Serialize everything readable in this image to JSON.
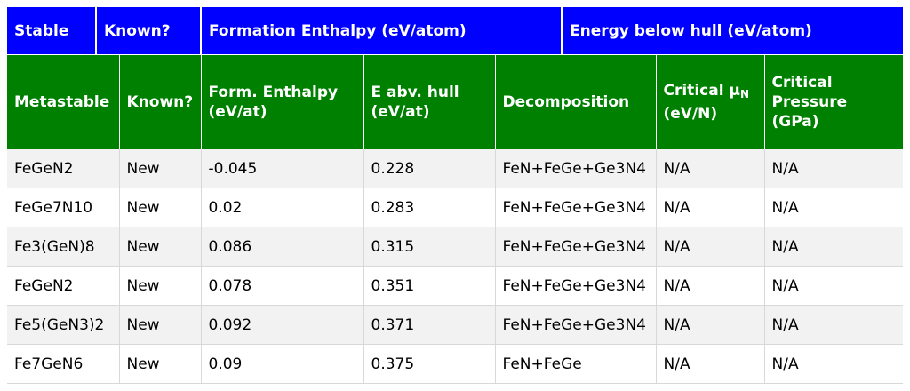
{
  "stable_header": {
    "stable": "Stable",
    "known": "Known?",
    "formation_enthalpy": "Formation Enthalpy (eV/atom)",
    "energy_below_hull": "Energy below hull (eV/atom)"
  },
  "meta_header": {
    "metastable": "Metastable",
    "known": "Known?",
    "form_enthalpy": "Form. Enthalpy (eV/at)",
    "e_abv_hull": "E abv. hull (eV/at)",
    "decomposition": "Decomposition",
    "critical_mu_prefix": "Critical μ",
    "critical_mu_sub": "N",
    "critical_mu_unit": "(eV/N)",
    "critical_pressure": "Critical Pressure (GPa)"
  },
  "colors": {
    "stable_header_bg": "#0000ff",
    "meta_header_bg": "#008000",
    "known_text": "#ff00ff",
    "positive_enthalpy_text": "#ff0000"
  },
  "rows": [
    {
      "compound": "FeGeN2",
      "known": "New",
      "enthalpy": "-0.045",
      "enthalpy_sign": "neg",
      "hull": "0.228",
      "decomposition": "FeN+FeGe+Ge3N4",
      "critical_mu": "N/A",
      "critical_pressure": "N/A"
    },
    {
      "compound": "FeGe7N10",
      "known": "New",
      "enthalpy": "0.02",
      "enthalpy_sign": "pos",
      "hull": "0.283",
      "decomposition": "FeN+FeGe+Ge3N4",
      "critical_mu": "N/A",
      "critical_pressure": "N/A"
    },
    {
      "compound": "Fe3(GeN)8",
      "known": "New",
      "enthalpy": "0.086",
      "enthalpy_sign": "pos",
      "hull": "0.315",
      "decomposition": "FeN+FeGe+Ge3N4",
      "critical_mu": "N/A",
      "critical_pressure": "N/A"
    },
    {
      "compound": "FeGeN2",
      "known": "New",
      "enthalpy": "0.078",
      "enthalpy_sign": "pos",
      "hull": "0.351",
      "decomposition": "FeN+FeGe+Ge3N4",
      "critical_mu": "N/A",
      "critical_pressure": "N/A"
    },
    {
      "compound": "Fe5(GeN3)2",
      "known": "New",
      "enthalpy": "0.092",
      "enthalpy_sign": "pos",
      "hull": "0.371",
      "decomposition": "FeN+FeGe+Ge3N4",
      "critical_mu": "N/A",
      "critical_pressure": "N/A"
    },
    {
      "compound": "Fe7GeN6",
      "known": "New",
      "enthalpy": "0.09",
      "enthalpy_sign": "pos",
      "hull": "0.375",
      "decomposition": "FeN+FeGe",
      "critical_mu": "N/A",
      "critical_pressure": "N/A"
    }
  ]
}
